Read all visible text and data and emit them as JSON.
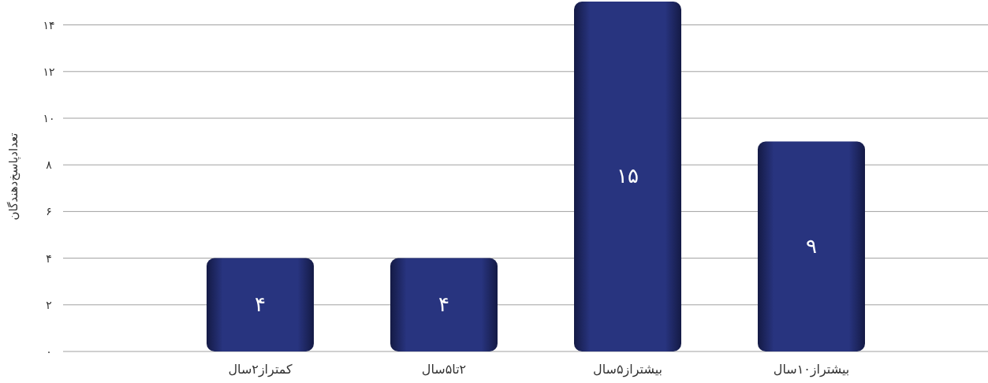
{
  "chart_data": {
    "type": "bar",
    "ylabel": "تعدادپاسخ‌دهندگان",
    "categories": [
      "کمتراز۲سال",
      "۲تا۵سال",
      "بیشتراز۵سال",
      "بیشتراز۱۰سال"
    ],
    "values": [
      4,
      4,
      15,
      9
    ],
    "value_labels": [
      "۴",
      "۴",
      "۱۵",
      "۹"
    ],
    "color": "#28347f",
    "ylim": [
      0,
      15
    ],
    "yticks": [
      {
        "value": 0,
        "label": "۰"
      },
      {
        "value": 2,
        "label": "۲"
      },
      {
        "value": 4,
        "label": "۴"
      },
      {
        "value": 6,
        "label": "۶"
      },
      {
        "value": 8,
        "label": "۸"
      },
      {
        "value": 10,
        "label": "۱۰"
      },
      {
        "value": 12,
        "label": "۱۲"
      },
      {
        "value": 14,
        "label": "۱۴"
      }
    ],
    "grid": "y"
  }
}
